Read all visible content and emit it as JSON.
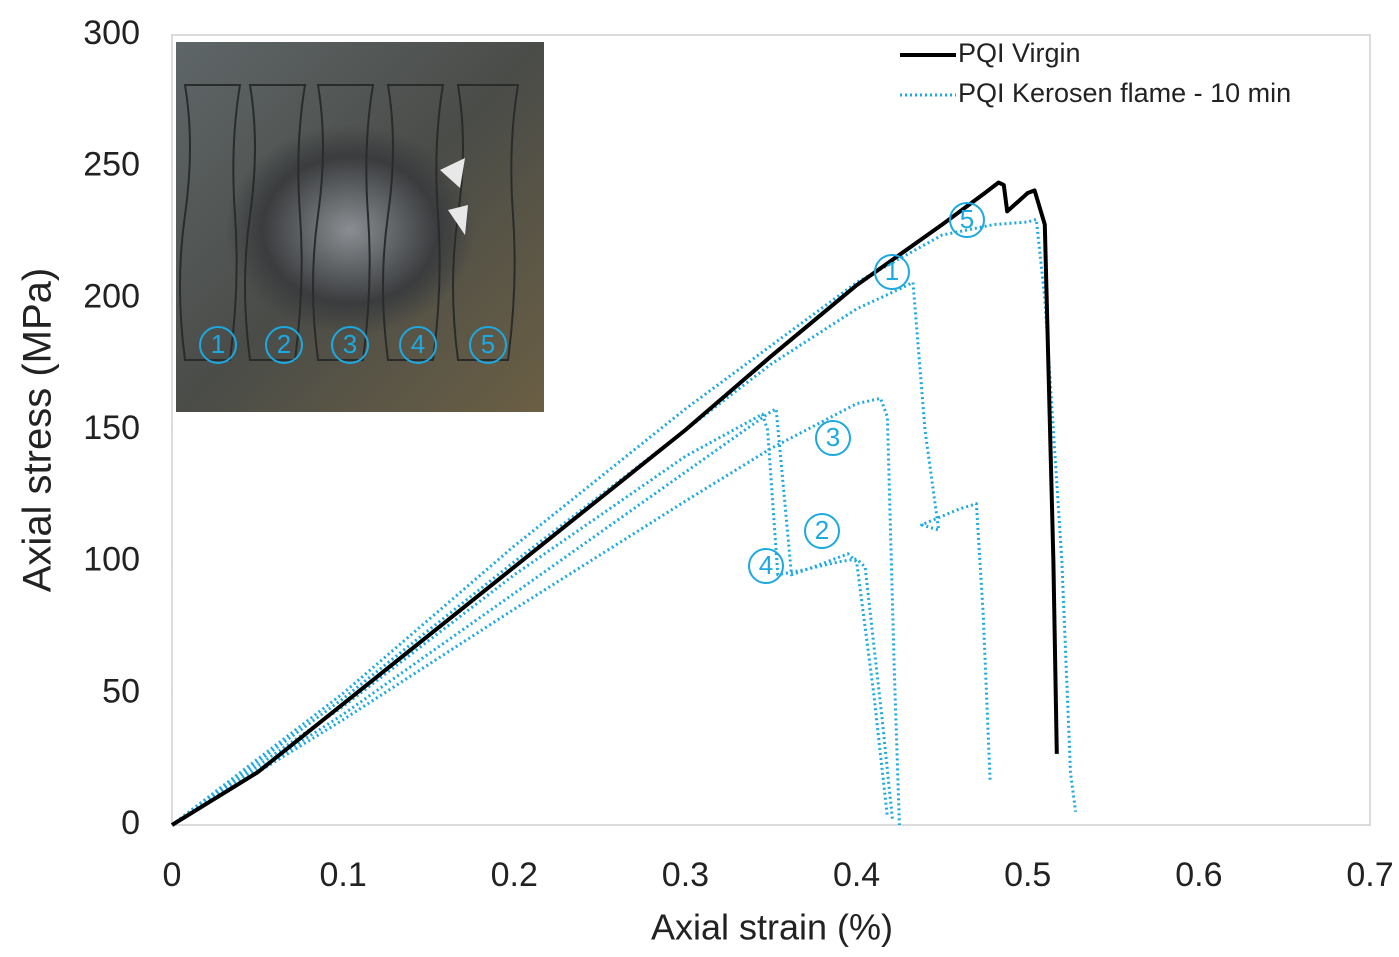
{
  "chart_data": {
    "type": "line",
    "xlabel": "Axial strain (%)",
    "ylabel": "Axial stress (MPa)",
    "xlim": [
      0,
      0.7
    ],
    "xticks": [
      0,
      0.1,
      0.2,
      0.3,
      0.4,
      0.5,
      0.6,
      0.7
    ],
    "ylim": [
      0,
      300
    ],
    "yticks": [
      0,
      50,
      100,
      150,
      200,
      250,
      300
    ],
    "legend": "upper right",
    "series": [
      {
        "name": "PQI Virgin",
        "color": "#000000",
        "style": "solid",
        "x": [
          0,
          0.05,
          0.1,
          0.2,
          0.3,
          0.35,
          0.4,
          0.45,
          0.475,
          0.483,
          0.486,
          0.488,
          0.5,
          0.504,
          0.51,
          0.515,
          0.517
        ],
        "values": [
          0,
          20,
          46,
          98,
          150,
          178,
          205,
          228,
          240,
          244,
          243,
          233,
          240,
          241,
          228,
          100,
          27
        ]
      },
      {
        "name": "PQI Kerosen flame - 10 min",
        "color": "#1ca9e1",
        "style": "dotted",
        "specimens": [
          {
            "label": "1",
            "x": [
              0,
              0.1,
              0.2,
              0.3,
              0.35,
              0.4,
              0.42,
              0.433,
              0.44,
              0.448,
              0.438,
              0.46,
              0.47,
              0.474,
              0.478
            ],
            "values": [
              0,
              48,
              100,
              150,
              175,
              196,
              202,
              206,
              150,
              112,
              114,
              120,
              122,
              80,
              17
            ]
          },
          {
            "label": "2",
            "x": [
              0,
              0.1,
              0.2,
              0.3,
              0.35,
              0.353,
              0.357,
              0.362,
              0.375,
              0.395,
              0.4,
              0.41,
              0.418
            ],
            "values": [
              0,
              42,
              88,
              134,
              157,
              158,
              130,
              95,
              98,
              103,
              100,
              50,
              3
            ]
          },
          {
            "label": "3",
            "x": [
              0,
              0.1,
              0.2,
              0.3,
              0.35,
              0.4,
              0.414,
              0.418,
              0.422,
              0.425
            ],
            "values": [
              0,
              40,
              82,
              123,
              143,
              160,
              162,
              155,
              60,
              0
            ]
          },
          {
            "label": "4",
            "x": [
              0,
              0.1,
              0.2,
              0.3,
              0.345,
              0.348,
              0.354,
              0.37,
              0.39,
              0.4,
              0.405,
              0.415,
              0.421
            ],
            "values": [
              0,
              45,
              95,
              140,
              156,
              150,
              95,
              97,
              100,
              101,
              98,
              40,
              2
            ]
          },
          {
            "label": "5",
            "x": [
              0,
              0.1,
              0.2,
              0.3,
              0.35,
              0.4,
              0.45,
              0.48,
              0.5,
              0.505,
              0.51,
              0.52,
              0.525,
              0.528
            ],
            "values": [
              0,
              50,
              106,
              158,
              182,
              206,
              224,
              228,
              229,
              230,
              200,
              100,
              20,
              5
            ]
          }
        ]
      }
    ]
  }
}
